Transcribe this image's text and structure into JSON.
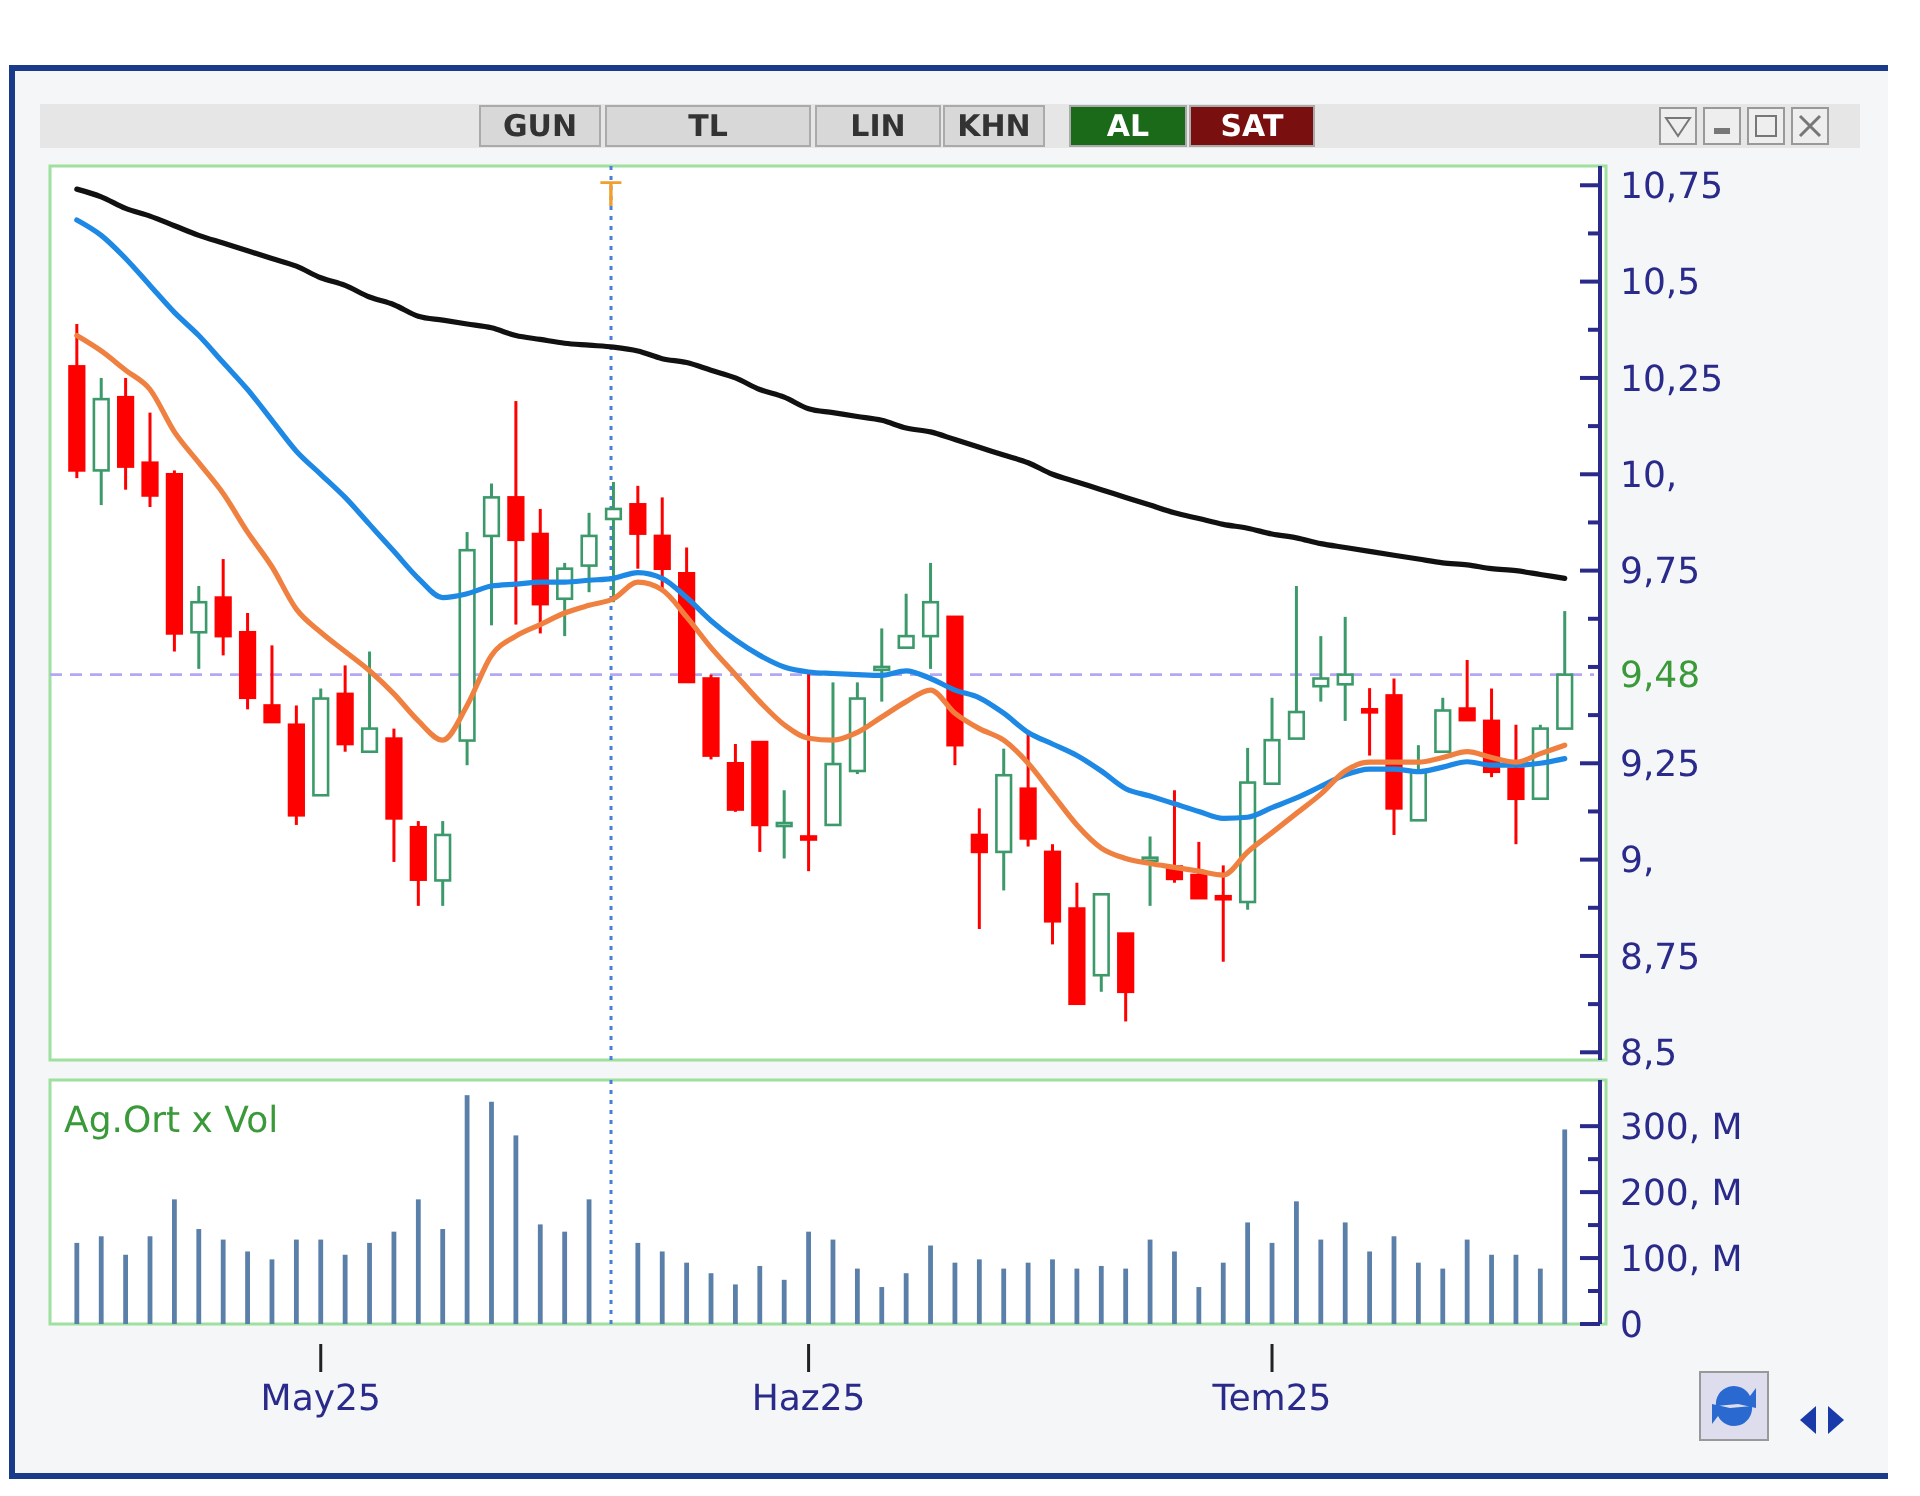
{
  "chart_data": [
    {
      "type": "candlestick",
      "annotations": [
        "GUN",
        "TL",
        "LIN",
        "KHN",
        "AL",
        "SAT",
        "T"
      ],
      "tick_labels": "y",
      "categories": [
        null,
        null,
        null,
        null,
        null,
        null,
        null,
        null,
        null,
        null,
        null,
        null,
        null,
        null,
        null,
        null,
        null,
        null,
        null,
        null,
        null,
        null,
        null,
        null,
        null,
        null,
        null,
        null,
        null,
        null,
        null,
        null,
        null,
        null,
        null,
        null,
        null,
        null,
        null,
        null,
        null,
        null,
        null,
        null,
        null,
        null,
        null,
        null,
        null,
        null,
        null,
        null,
        null,
        null,
        null,
        null,
        null,
        null,
        null,
        null,
        null,
        null
      ],
      "ylim": [
        8.48,
        10.8
      ],
      "yticks": [
        {
          "value": 10.75,
          "label": "10,75"
        },
        {
          "value": 10.625,
          "label": null
        },
        {
          "value": 10.5,
          "label": "10,5"
        },
        {
          "value": 10.375,
          "label": null
        },
        {
          "value": 10.25,
          "label": "10,25"
        },
        {
          "value": 10.125,
          "label": null
        },
        {
          "value": 10,
          "label": "10,"
        },
        {
          "value": 9.875,
          "label": null
        },
        {
          "value": 9.75,
          "label": "9,75"
        },
        {
          "value": 9.625,
          "label": null
        },
        {
          "value": 9.5,
          "label": null
        },
        {
          "value": 9.375,
          "label": null
        },
        {
          "value": 9.25,
          "label": "9,25"
        },
        {
          "value": 9.125,
          "label": null
        },
        {
          "value": 9,
          "label": "9,"
        },
        {
          "value": 8.875,
          "label": null
        },
        {
          "value": 8.75,
          "label": "8,75"
        },
        {
          "value": 8.625,
          "label": null
        },
        {
          "value": 8.5,
          "label": "8,5"
        }
      ],
      "ohlc": [
        [
          10.28,
          10.39,
          9.99,
          10.01
        ],
        [
          10.01,
          10.25,
          9.92,
          10.195
        ],
        [
          10.2,
          10.25,
          9.96,
          10.02
        ],
        [
          10.03,
          10.16,
          9.915,
          9.945
        ],
        [
          10.0,
          10.01,
          9.54,
          9.587
        ],
        [
          9.59,
          9.71,
          9.495,
          9.668
        ],
        [
          9.68,
          9.78,
          9.53,
          9.58
        ],
        [
          9.59,
          9.64,
          9.39,
          9.42
        ],
        [
          9.4,
          9.556,
          9.357,
          9.357
        ],
        [
          9.35,
          9.4,
          9.09,
          9.115
        ],
        [
          9.167,
          9.444,
          9.167,
          9.418
        ],
        [
          9.43,
          9.504,
          9.28,
          9.3
        ],
        [
          9.28,
          9.54,
          9.28,
          9.34
        ],
        [
          9.314,
          9.34,
          8.994,
          9.107
        ],
        [
          9.084,
          9.1,
          8.88,
          8.948
        ],
        [
          8.946,
          9.1,
          8.88,
          9.064
        ],
        [
          9.309,
          9.85,
          9.245,
          9.803
        ],
        [
          9.84,
          9.976,
          9.608,
          9.94
        ],
        [
          9.94,
          10.19,
          9.61,
          9.83
        ],
        [
          9.845,
          9.91,
          9.587,
          9.663
        ],
        [
          9.677,
          9.77,
          9.58,
          9.755
        ],
        [
          9.763,
          9.9,
          9.694,
          9.84
        ],
        [
          9.884,
          9.98,
          9.668,
          9.91
        ],
        [
          9.922,
          9.97,
          9.755,
          9.846
        ],
        [
          9.84,
          9.94,
          9.694,
          9.755
        ],
        [
          9.743,
          9.81,
          9.461,
          9.461
        ],
        [
          9.47,
          9.48,
          9.26,
          9.27
        ],
        [
          9.25,
          9.3,
          9.124,
          9.13
        ],
        [
          9.305,
          9.305,
          9.02,
          9.09
        ],
        [
          9.09,
          9.18,
          9.003,
          9.095
        ],
        [
          9.06,
          9.487,
          8.97,
          9.057
        ],
        [
          9.09,
          9.46,
          9.09,
          9.248
        ],
        [
          9.23,
          9.46,
          9.222,
          9.418
        ],
        [
          9.5,
          9.6,
          9.41,
          9.5
        ],
        [
          9.55,
          9.69,
          9.547,
          9.58
        ],
        [
          9.58,
          9.77,
          9.495,
          9.668
        ],
        [
          9.63,
          9.63,
          9.245,
          9.297
        ],
        [
          9.064,
          9.133,
          8.82,
          9.02
        ],
        [
          9.02,
          9.288,
          8.92,
          9.219
        ],
        [
          9.184,
          9.334,
          9.034,
          9.055
        ],
        [
          9.02,
          9.04,
          8.78,
          8.84
        ],
        [
          8.873,
          8.94,
          8.626,
          8.626
        ],
        [
          8.7,
          8.91,
          8.657,
          8.91
        ],
        [
          8.808,
          8.808,
          8.58,
          8.657
        ],
        [
          9.0,
          9.06,
          8.88,
          9.005
        ],
        [
          8.982,
          9.18,
          8.94,
          8.95
        ],
        [
          8.96,
          9.046,
          8.9,
          8.9
        ],
        [
          8.905,
          8.985,
          8.735,
          8.9
        ],
        [
          8.89,
          9.29,
          8.87,
          9.2
        ],
        [
          9.197,
          9.42,
          9.197,
          9.31
        ],
        [
          9.314,
          9.71,
          9.314,
          9.383
        ],
        [
          9.45,
          9.58,
          9.41,
          9.47
        ],
        [
          9.455,
          9.63,
          9.36,
          9.48
        ],
        [
          9.39,
          9.445,
          9.27,
          9.383
        ],
        [
          9.426,
          9.47,
          9.064,
          9.133
        ],
        [
          9.102,
          9.297,
          9.102,
          9.228
        ],
        [
          9.28,
          9.42,
          9.28,
          9.387
        ],
        [
          9.392,
          9.518,
          9.362,
          9.362
        ],
        [
          9.36,
          9.444,
          9.214,
          9.228
        ],
        [
          9.236,
          9.35,
          9.04,
          9.158
        ],
        [
          9.158,
          9.35,
          9.158,
          9.34
        ],
        [
          9.34,
          9.645,
          9.34,
          9.48
        ]
      ],
      "colors": [
        "#ff0000",
        "#3c9a6a",
        "#ff0000",
        "#ff0000",
        "#ff0000",
        "#3c9a6a",
        "#ff0000",
        "#ff0000",
        "#ff0000",
        "#ff0000",
        "#3c9a6a",
        "#ff0000",
        "#3c9a6a",
        "#ff0000",
        "#ff0000",
        "#3c9a6a",
        "#3c9a6a",
        "#3c9a6a",
        "#ff0000",
        "#ff0000",
        "#3c9a6a",
        "#3c9a6a",
        "#3c9a6a",
        "#ff0000",
        "#ff0000",
        "#ff0000",
        "#ff0000",
        "#ff0000",
        "#ff0000",
        "#3c9a6a",
        "#ff0000",
        "#3c9a6a",
        "#3c9a6a",
        "#3c9a6a",
        "#3c9a6a",
        "#3c9a6a",
        "#ff0000",
        "#ff0000",
        "#3c9a6a",
        "#ff0000",
        "#ff0000",
        "#ff0000",
        "#3c9a6a",
        "#ff0000",
        "#3c9a6a",
        "#ff0000",
        "#ff0000",
        "#ff0000",
        "#3c9a6a",
        "#3c9a6a",
        "#3c9a6a",
        "#3c9a6a",
        "#3c9a6a",
        "#ff0000",
        "#ff0000",
        "#3c9a6a",
        "#3c9a6a",
        "#ff0000",
        "#ff0000",
        "#ff0000",
        "#3c9a6a",
        "#3c9a6a"
      ],
      "series": [
        {
          "type": "line",
          "color": "#111111",
          "values": [
            10.74,
            10.72,
            10.69,
            10.67,
            10.645,
            10.62,
            10.6,
            10.58,
            10.56,
            10.54,
            10.51,
            10.49,
            10.46,
            10.44,
            10.41,
            10.4,
            10.39,
            10.38,
            10.36,
            10.35,
            10.34,
            10.335,
            10.33,
            10.32,
            10.3,
            10.29,
            10.27,
            10.25,
            10.22,
            10.2,
            10.17,
            10.16,
            10.15,
            10.14,
            10.12,
            10.11,
            10.09,
            10.07,
            10.05,
            10.03,
            10.0,
            9.98,
            9.96,
            9.94,
            9.92,
            9.9,
            9.885,
            9.87,
            9.86,
            9.845,
            9.835,
            9.82,
            9.81,
            9.8,
            9.79,
            9.78,
            9.77,
            9.765,
            9.755,
            9.75,
            9.74,
            9.73
          ]
        },
        {
          "type": "line",
          "color": "#1e88e5",
          "values": [
            10.66,
            10.62,
            10.56,
            10.49,
            10.42,
            10.36,
            10.29,
            10.22,
            10.14,
            10.06,
            10.0,
            9.94,
            9.87,
            9.8,
            9.73,
            9.68,
            9.69,
            9.71,
            9.715,
            9.72,
            9.72,
            9.725,
            9.73,
            9.745,
            9.73,
            9.68,
            9.62,
            9.57,
            9.53,
            9.5,
            9.487,
            9.483,
            9.48,
            9.478,
            9.49,
            9.47,
            9.44,
            9.42,
            9.38,
            9.33,
            9.3,
            9.27,
            9.23,
            9.184,
            9.165,
            9.145,
            9.125,
            9.107,
            9.11,
            9.135,
            9.16,
            9.19,
            9.22,
            9.235,
            9.235,
            9.228,
            9.24,
            9.254,
            9.245,
            9.245,
            9.25,
            9.262
          ]
        },
        {
          "type": "line",
          "color": "#f08040",
          "values": [
            10.36,
            10.32,
            10.27,
            10.22,
            10.11,
            10.03,
            9.95,
            9.85,
            9.76,
            9.65,
            9.59,
            9.54,
            9.49,
            9.43,
            9.36,
            9.31,
            9.4,
            9.53,
            9.58,
            9.61,
            9.64,
            9.66,
            9.677,
            9.72,
            9.7,
            9.63,
            9.55,
            9.48,
            9.41,
            9.35,
            9.315,
            9.31,
            9.33,
            9.37,
            9.41,
            9.44,
            9.38,
            9.34,
            9.31,
            9.25,
            9.17,
            9.09,
            9.03,
            9.003,
            8.99,
            8.98,
            8.97,
            8.96,
            9.02,
            9.07,
            9.12,
            9.17,
            9.23,
            9.253,
            9.253,
            9.253,
            9.265,
            9.28,
            9.265,
            9.253,
            9.275,
            9.297
          ]
        }
      ],
      "ref_lines": [
        {
          "axis": "y",
          "value": 9.48,
          "label": "9,48",
          "color": "#b4a8f4",
          "line_style": "dashed"
        }
      ]
    },
    {
      "type": "bar",
      "title": "Ag.Ort x Vol",
      "color": "#5a7fa8",
      "categories": [
        null,
        null,
        null,
        null,
        null,
        null,
        null,
        null,
        null,
        null,
        "May25",
        null,
        null,
        null,
        null,
        null,
        null,
        null,
        null,
        null,
        null,
        null,
        null,
        null,
        null,
        null,
        null,
        null,
        null,
        null,
        "Haz25",
        null,
        null,
        null,
        null,
        null,
        null,
        null,
        null,
        null,
        null,
        null,
        null,
        null,
        null,
        null,
        null,
        null,
        null,
        "Tem25",
        null,
        null,
        null,
        null,
        null,
        null,
        null,
        null,
        null,
        null,
        null,
        null
      ],
      "values": [
        123,
        133,
        105,
        133,
        189,
        144,
        128,
        110,
        98,
        128,
        128,
        105,
        123,
        140,
        189,
        144,
        347,
        337,
        286,
        151,
        140,
        189,
        null,
        123,
        110,
        93,
        77,
        60,
        88,
        67,
        140,
        128,
        84,
        56,
        77,
        119,
        93,
        98,
        84,
        93,
        98,
        84,
        88,
        84,
        128,
        110,
        56,
        93,
        154,
        123,
        186,
        128,
        154,
        110,
        133,
        93,
        84,
        128,
        105,
        105,
        84,
        295
      ],
      "ylim": [
        0,
        370
      ],
      "yticks": [
        0,
        {
          "value": 50,
          "label": null
        },
        {
          "value": 100,
          "label": "100, M"
        },
        {
          "value": 150,
          "label": null
        },
        {
          "value": 200,
          "label": "200, M"
        },
        {
          "value": 250,
          "label": null
        },
        {
          "value": 300,
          "label": "300, M"
        }
      ]
    }
  ]
}
